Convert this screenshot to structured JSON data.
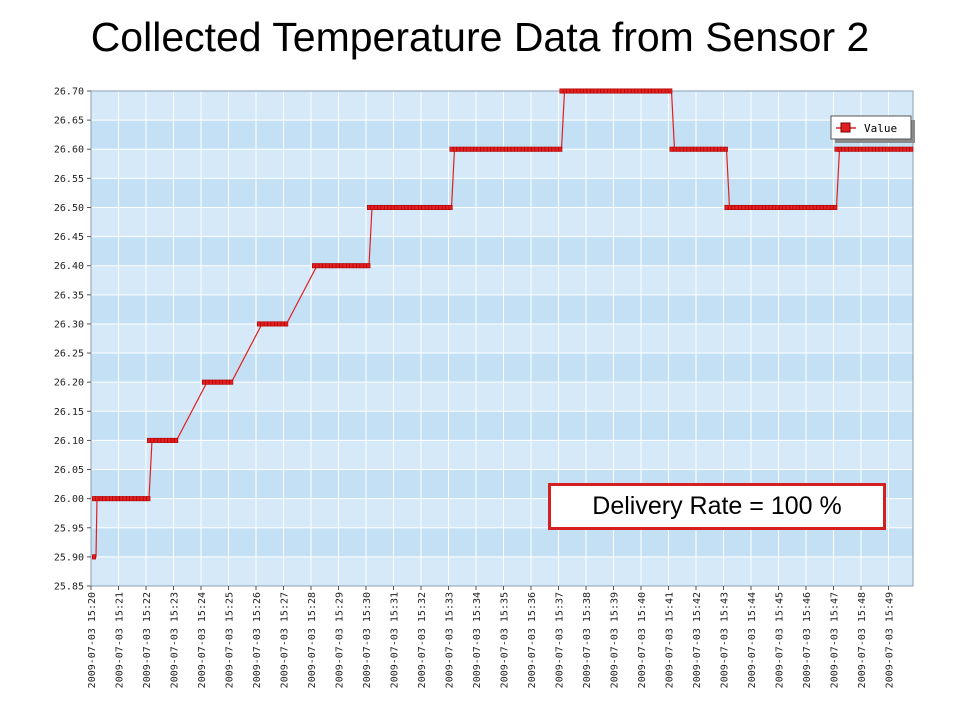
{
  "title": "Collected Temperature Data from Sensor 2",
  "annotation": "Delivery Rate = 100 %",
  "colors": {
    "plot_band_light": "#d6e9f8",
    "plot_band_dark": "#c4e0f5",
    "series_line": "#e02020",
    "series_marker": "#b00000",
    "annotation_border": "#d42020"
  },
  "chart_data": {
    "type": "line",
    "title": "Collected Temperature Data from Sensor 2",
    "legend": {
      "entries": [
        "Value"
      ],
      "placement": "top-right"
    },
    "grid": true,
    "ylim": [
      25.85,
      26.7
    ],
    "y_ticks": [
      "25.85",
      "25.90",
      "25.95",
      "26.00",
      "26.05",
      "26.10",
      "26.15",
      "26.20",
      "26.25",
      "26.30",
      "26.35",
      "26.40",
      "26.45",
      "26.50",
      "26.55",
      "26.60",
      "26.65",
      "26.70"
    ],
    "x_ticks": [
      "2009-07-03 15:20",
      "2009-07-03 15:21",
      "2009-07-03 15:22",
      "2009-07-03 15:23",
      "2009-07-03 15:24",
      "2009-07-03 15:25",
      "2009-07-03 15:26",
      "2009-07-03 15:27",
      "2009-07-03 15:28",
      "2009-07-03 15:29",
      "2009-07-03 15:30",
      "2009-07-03 15:31",
      "2009-07-03 15:32",
      "2009-07-03 15:33",
      "2009-07-03 15:34",
      "2009-07-03 15:35",
      "2009-07-03 15:36",
      "2009-07-03 15:37",
      "2009-07-03 15:38",
      "2009-07-03 15:39",
      "2009-07-03 15:40",
      "2009-07-03 15:41",
      "2009-07-03 15:42",
      "2009-07-03 15:43",
      "2009-07-03 15:44",
      "2009-07-03 15:45",
      "2009-07-03 15:46",
      "2009-07-03 15:47",
      "2009-07-03 15:48",
      "2009-07-03 15:49"
    ],
    "series": [
      {
        "name": "Value",
        "segments": [
          {
            "x_start": "2009-07-03 15:20",
            "x_end": "2009-07-03 15:20",
            "y": 25.9
          },
          {
            "x_start": "2009-07-03 15:20",
            "x_end": "2009-07-03 15:22",
            "y": 26.0
          },
          {
            "x_start": "2009-07-03 15:22",
            "x_end": "2009-07-03 15:23",
            "y": 26.1
          },
          {
            "x_start": "2009-07-03 15:24",
            "x_end": "2009-07-03 15:25",
            "y": 26.2
          },
          {
            "x_start": "2009-07-03 15:26",
            "x_end": "2009-07-03 15:27",
            "y": 26.3
          },
          {
            "x_start": "2009-07-03 15:28",
            "x_end": "2009-07-03 15:30",
            "y": 26.4
          },
          {
            "x_start": "2009-07-03 15:30",
            "x_end": "2009-07-03 15:33",
            "y": 26.5
          },
          {
            "x_start": "2009-07-03 15:33",
            "x_end": "2009-07-03 15:37",
            "y": 26.6
          },
          {
            "x_start": "2009-07-03 15:37",
            "x_end": "2009-07-03 15:41",
            "y": 26.7
          },
          {
            "x_start": "2009-07-03 15:41",
            "x_end": "2009-07-03 15:43",
            "y": 26.6
          },
          {
            "x_start": "2009-07-03 15:43",
            "x_end": "2009-07-03 15:47",
            "y": 26.5
          },
          {
            "x_start": "2009-07-03 15:47",
            "x_end": "2009-07-03 15:49",
            "y": 26.6
          }
        ]
      }
    ]
  }
}
